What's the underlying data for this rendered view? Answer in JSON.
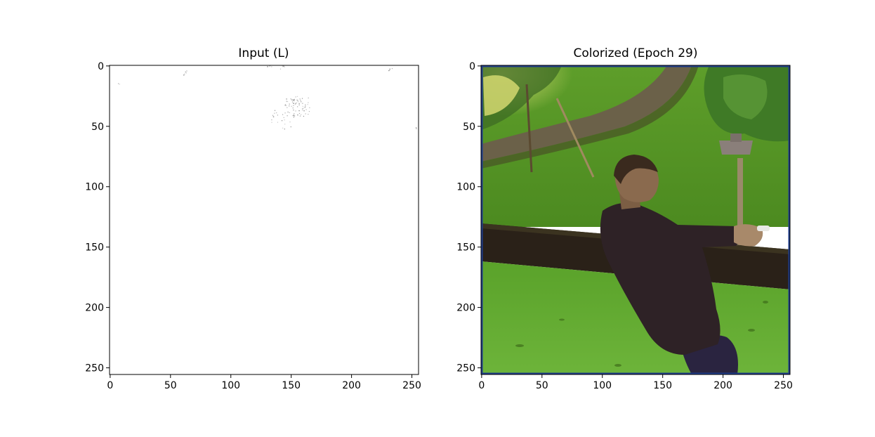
{
  "figure": {
    "background": "#ffffff",
    "panels": [
      {
        "id": "input",
        "title": "Input (L)",
        "xlim": [
          0,
          255
        ],
        "ylim": [
          255,
          0
        ],
        "xticks": [
          0,
          50,
          100,
          150,
          200,
          250
        ],
        "yticks": [
          0,
          50,
          100,
          150,
          200,
          250
        ],
        "content": "white-luminance-map",
        "image_background": "#ffffff",
        "speckle_color": "#8a8a8a",
        "speckles": [
          {
            "x": 8,
            "y": 15,
            "n": 2
          },
          {
            "x": 63,
            "y": 6,
            "n": 6
          },
          {
            "x": 132,
            "y": 1,
            "n": 5
          },
          {
            "x": 143,
            "y": 1,
            "n": 6
          },
          {
            "x": 232,
            "y": 3,
            "n": 6
          },
          {
            "x": 153,
            "y": 35,
            "n": 50
          },
          {
            "x": 158,
            "y": 33,
            "n": 30
          },
          {
            "x": 142,
            "y": 45,
            "n": 20
          },
          {
            "x": 254,
            "y": 52,
            "n": 2
          }
        ]
      },
      {
        "id": "colorized",
        "title": "Colorized (Epoch 29)",
        "xlim": [
          0,
          255
        ],
        "ylim": [
          255,
          0
        ],
        "xticks": [
          0,
          50,
          100,
          150,
          200,
          250
        ],
        "yticks": [
          0,
          50,
          100,
          150,
          200,
          250
        ],
        "content": "man-in-dark-sweater-leaning-on-lawn-photo",
        "frame_color": "#1f3c8a",
        "colors": {
          "grass_light": "#6fb23a",
          "grass_dark": "#4f8f22",
          "hedge": "#2a2118",
          "path": "#6b6149",
          "foliage_sun": "#cbd46a",
          "tree_green": "#3f7a26",
          "sweater": "#2e2226",
          "skin": "#8a6a4e",
          "hair": "#3a2a1e",
          "trousers": "#2a2440",
          "pole": "#9a8a6a"
        }
      }
    ]
  }
}
